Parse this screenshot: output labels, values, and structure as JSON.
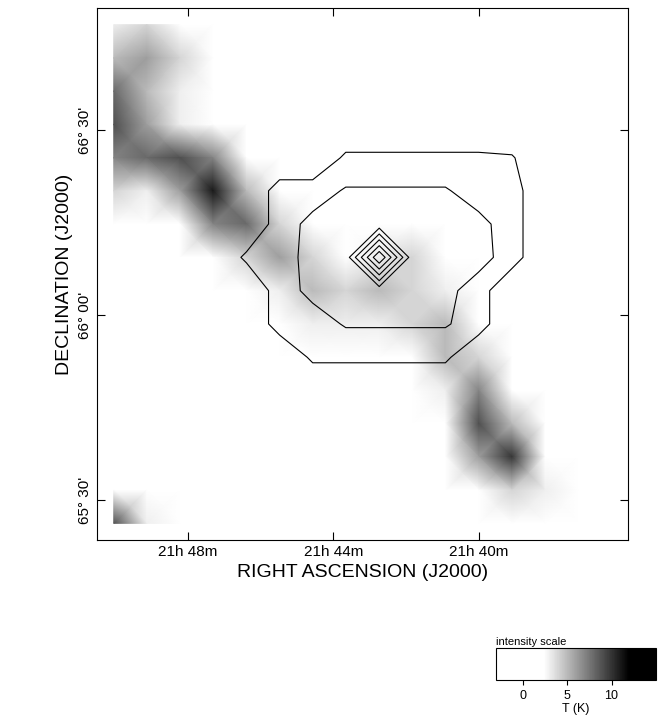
{
  "chart_data": {
    "type": "heatmap",
    "x_label": "RIGHT ASCENSION (J2000)",
    "y_label": "DECLINATION (J2000)",
    "xlim": [
      50.5,
      35.9
    ],
    "xticks": [
      {
        "value": 48,
        "label": "21h 48m"
      },
      {
        "value": 44,
        "label": "21h 44m"
      },
      {
        "value": 40,
        "label": "21h 40m"
      }
    ],
    "ylim": [
      65.392,
      66.83
    ],
    "yticks": [
      {
        "value": 65.5,
        "label": "65° 30'"
      },
      {
        "value": 66.0,
        "label": "66° 00'"
      },
      {
        "value": 66.5,
        "label": "66° 30'"
      }
    ],
    "x": [
      50.04,
      49.13,
      48.22,
      47.31,
      46.39,
      45.48,
      44.57,
      43.66,
      42.74,
      41.83,
      40.92,
      40.01,
      39.09,
      38.18,
      37.27,
      36.36
    ],
    "y": [
      66.785,
      66.695,
      66.605,
      66.515,
      66.425,
      66.336,
      66.246,
      66.156,
      66.066,
      65.976,
      65.886,
      65.796,
      65.707,
      65.617,
      65.527,
      65.437
    ],
    "cells": [
      [
        3,
        4,
        2,
        1,
        1,
        2,
        1,
        1,
        1,
        1,
        1,
        2,
        1,
        1,
        1,
        1
      ],
      [
        5,
        6,
        4,
        2,
        1,
        1,
        1,
        1,
        1,
        1,
        1,
        1,
        1,
        1,
        1,
        1
      ],
      [
        8,
        5,
        3,
        1,
        1,
        1,
        1,
        1,
        2,
        1,
        1,
        1,
        1,
        1,
        1,
        1
      ],
      [
        9,
        6,
        3,
        1,
        1,
        1,
        1,
        1,
        1,
        1,
        1,
        1,
        1,
        1,
        1,
        1
      ],
      [
        7,
        8,
        9,
        7,
        2,
        1,
        1,
        1,
        1,
        1,
        1,
        1,
        1,
        1,
        1,
        1
      ],
      [
        4,
        3,
        6,
        11,
        5,
        2,
        1,
        1,
        1,
        1,
        1,
        1,
        1,
        1,
        1,
        1
      ],
      [
        2,
        1,
        1,
        7,
        8,
        4,
        2,
        1,
        1,
        1,
        1,
        1,
        1,
        1,
        1,
        1
      ],
      [
        1,
        1,
        1,
        2,
        4,
        6,
        4,
        1,
        3,
        4,
        1,
        1,
        1,
        1,
        1,
        1
      ],
      [
        1,
        1,
        1,
        1,
        1,
        3,
        5,
        4,
        5,
        4,
        3,
        1,
        1,
        1,
        1,
        1
      ],
      [
        1,
        1,
        1,
        1,
        1,
        1,
        3,
        3,
        3,
        4,
        5,
        1,
        1,
        1,
        1,
        1
      ],
      [
        1,
        1,
        1,
        1,
        1,
        1,
        1,
        1,
        1,
        1,
        5,
        4,
        1,
        1,
        1,
        1
      ],
      [
        1,
        1,
        1,
        1,
        1,
        1,
        1,
        1,
        1,
        1,
        3,
        7,
        1,
        1,
        1,
        1
      ],
      [
        1,
        1,
        1,
        1,
        1,
        1,
        1,
        1,
        1,
        1,
        1,
        9,
        5,
        1,
        1,
        1
      ],
      [
        1,
        1,
        1,
        1,
        1,
        1,
        1,
        1,
        1,
        1,
        1,
        6,
        10,
        2,
        1,
        1
      ],
      [
        2,
        1,
        1,
        1,
        1,
        1,
        1,
        1,
        1,
        1,
        1,
        1,
        4,
        3,
        1,
        1
      ],
      [
        9,
        3,
        1,
        1,
        1,
        1,
        1,
        1,
        1,
        1,
        1,
        1,
        1,
        2,
        1,
        1
      ]
    ],
    "contour_levels": [
      1,
      2,
      3,
      4,
      5,
      6,
      7
    ],
    "contour_cells": [
      [
        0,
        0,
        0,
        0,
        0,
        0,
        0,
        0,
        0,
        0,
        0,
        0,
        0,
        0,
        0,
        0
      ],
      [
        0,
        0,
        0,
        0,
        0,
        0,
        0,
        0,
        0,
        0,
        0,
        0,
        0,
        0,
        0,
        0
      ],
      [
        0,
        0,
        0,
        0,
        0,
        0,
        0,
        0,
        0,
        0,
        0,
        0,
        0,
        0,
        0,
        0
      ],
      [
        0,
        0,
        0,
        0,
        0,
        0,
        0,
        0,
        0,
        0,
        0,
        0,
        0,
        0,
        0,
        0
      ],
      [
        0,
        0,
        0,
        0,
        0,
        0,
        0,
        1.2,
        1.2,
        1.2,
        1.2,
        1.2,
        1.1,
        0,
        0,
        0
      ],
      [
        0,
        0,
        0,
        0,
        0,
        1.5,
        1.5,
        2.1,
        2.1,
        2.1,
        2.1,
        1.5,
        1.5,
        0,
        0,
        0
      ],
      [
        0,
        0,
        0,
        0,
        0,
        1.5,
        2.3,
        2.3,
        2.3,
        2.3,
        2.3,
        2.3,
        1.5,
        0,
        0,
        0
      ],
      [
        0,
        0,
        0,
        0,
        1.2,
        1.5,
        2.4,
        2.4,
        8,
        2.4,
        2.4,
        2.4,
        1.5,
        0,
        0,
        0
      ],
      [
        0,
        0,
        0,
        0,
        0,
        1.5,
        2.3,
        2.3,
        2.3,
        2.3,
        2.3,
        1.5,
        0,
        0,
        0,
        0
      ],
      [
        0,
        0,
        0,
        0,
        0,
        1.5,
        1.5,
        2.1,
        2.1,
        2.1,
        2.1,
        1.5,
        0,
        0,
        0,
        0
      ],
      [
        0,
        0,
        0,
        0,
        0,
        0,
        1.2,
        1.2,
        1.2,
        1.2,
        1.2,
        0,
        0,
        0,
        0,
        0
      ],
      [
        0,
        0,
        0,
        0,
        0,
        0,
        0,
        0,
        0,
        0,
        0,
        0,
        0,
        0,
        0,
        0
      ],
      [
        0,
        0,
        0,
        0,
        0,
        0,
        0,
        0,
        0,
        0,
        0,
        0,
        0,
        0,
        0,
        0
      ],
      [
        0,
        0,
        0,
        0,
        0,
        0,
        0,
        0,
        0,
        0,
        0,
        0,
        0,
        0,
        0,
        0
      ],
      [
        0,
        0,
        0,
        0,
        0,
        0,
        0,
        0,
        0,
        0,
        0,
        0,
        0,
        0,
        0,
        0
      ],
      [
        0,
        0,
        0,
        0,
        0,
        0,
        0,
        0,
        0,
        0,
        0,
        0,
        0,
        0,
        0,
        0
      ]
    ],
    "colorbar": {
      "title": "intensity scale",
      "label": "T (K)",
      "range": [
        -3,
        15
      ],
      "ticks": [
        0,
        5,
        10
      ]
    }
  }
}
